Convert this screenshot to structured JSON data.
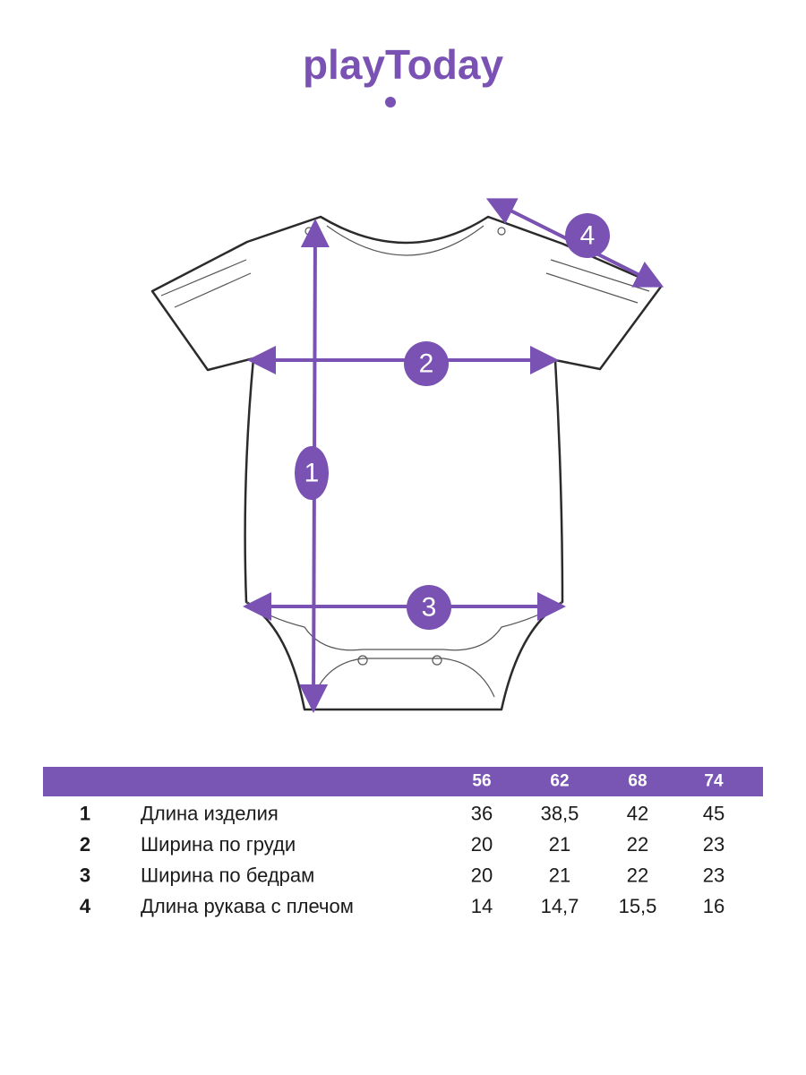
{
  "logo": "playToday",
  "diagram": {
    "markers": [
      "1",
      "2",
      "3",
      "4"
    ]
  },
  "table": {
    "header": [
      "56",
      "62",
      "68",
      "74"
    ],
    "rows": [
      [
        "1",
        "Длина изделия",
        "36",
        "38,5",
        "42",
        "45"
      ],
      [
        "2",
        "Ширина по груди",
        "20",
        "21",
        "22",
        "23"
      ],
      [
        "3",
        "Ширина по бедрам",
        "20",
        "21",
        "22",
        "23"
      ],
      [
        "4",
        "Длина рукава с плечом",
        "14",
        "14,7",
        "15,5",
        "16"
      ]
    ]
  }
}
